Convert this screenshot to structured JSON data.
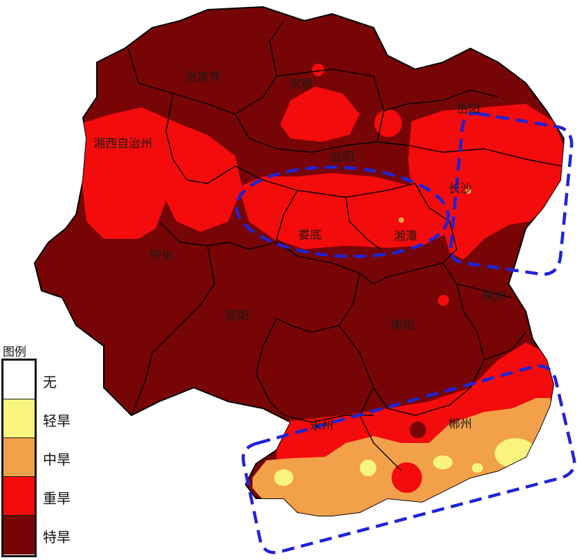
{
  "map": {
    "cities": [
      {
        "id": "zhangjiajie",
        "name": "张家界"
      },
      {
        "id": "changde",
        "name": "常德"
      },
      {
        "id": "yueyang",
        "name": "岳阳"
      },
      {
        "id": "xiangxi",
        "name": "湘西自治州"
      },
      {
        "id": "yiyang",
        "name": "益阳"
      },
      {
        "id": "changsha",
        "name": "长沙"
      },
      {
        "id": "loudi",
        "name": "娄底"
      },
      {
        "id": "xiangtan",
        "name": "湘潭"
      },
      {
        "id": "huaihua",
        "name": "怀化"
      },
      {
        "id": "zhuzhou",
        "name": "株洲"
      },
      {
        "id": "shaoyang",
        "name": "邵阳"
      },
      {
        "id": "hengyang",
        "name": "衡阳"
      },
      {
        "id": "yongzhou",
        "name": "永州"
      },
      {
        "id": "chenzhou",
        "name": "郴州"
      }
    ]
  },
  "legend": {
    "title": "图例",
    "items": [
      {
        "label": "无",
        "color": "#ffffff"
      },
      {
        "label": "轻旱",
        "color": "#f8f47e"
      },
      {
        "label": "中旱",
        "color": "#f2a04a"
      },
      {
        "label": "重旱",
        "color": "#f40b0b"
      },
      {
        "label": "特旱",
        "color": "#780506"
      }
    ]
  },
  "colors": {
    "extreme": "#780506",
    "severe": "#f40b0b",
    "moderate": "#f2a04a",
    "light": "#f8f47e",
    "highlight": "#1f23d6"
  }
}
